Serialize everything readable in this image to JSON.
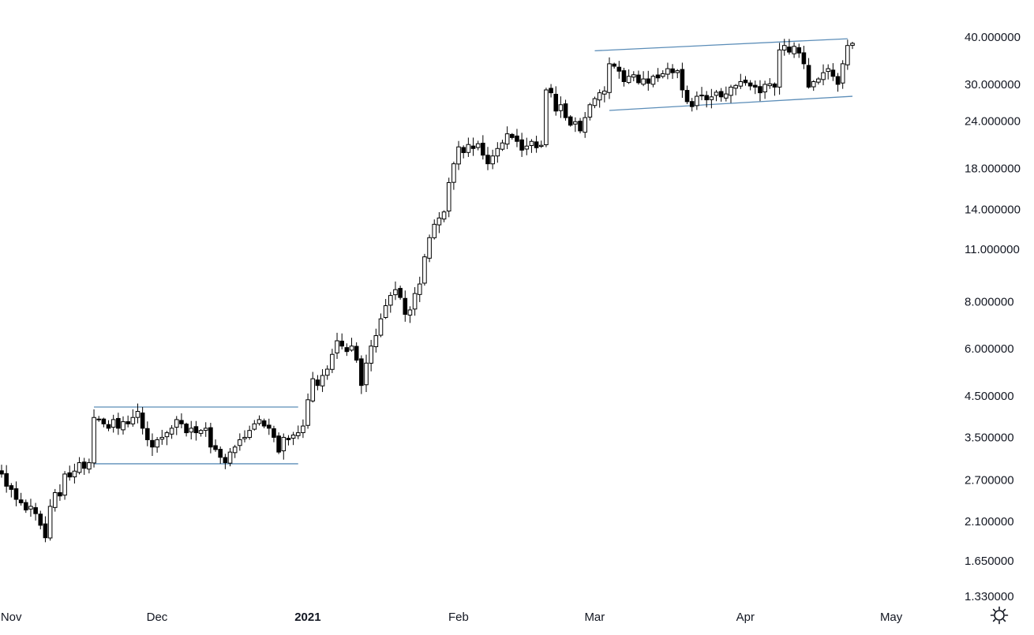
{
  "chart_data": {
    "type": "candlestick",
    "scale": "log",
    "ylim": [
      1.33,
      40.0
    ],
    "y_ticks": [
      {
        "value": 40.0,
        "label": "40.000000"
      },
      {
        "value": 30.0,
        "label": "30.000000"
      },
      {
        "value": 24.0,
        "label": "24.000000"
      },
      {
        "value": 18.0,
        "label": "18.000000"
      },
      {
        "value": 14.0,
        "label": "14.000000"
      },
      {
        "value": 11.0,
        "label": "11.000000"
      },
      {
        "value": 8.0,
        "label": "8.000000"
      },
      {
        "value": 6.0,
        "label": "6.000000"
      },
      {
        "value": 4.5,
        "label": "4.500000"
      },
      {
        "value": 3.5,
        "label": "3.500000"
      },
      {
        "value": 2.7,
        "label": "2.700000"
      },
      {
        "value": 2.1,
        "label": "2.100000"
      },
      {
        "value": 1.65,
        "label": "1.650000"
      },
      {
        "value": 1.33,
        "label": "1.330000"
      }
    ],
    "x_ticks": [
      {
        "date": "2020-11-01",
        "label": "Nov",
        "bold": false
      },
      {
        "date": "2020-12-01",
        "label": "Dec",
        "bold": false
      },
      {
        "date": "2021-01-01",
        "label": "2021",
        "bold": true
      },
      {
        "date": "2021-02-01",
        "label": "Feb",
        "bold": false
      },
      {
        "date": "2021-03-01",
        "label": "Mar",
        "bold": false
      },
      {
        "date": "2021-04-01",
        "label": "Apr",
        "bold": false
      },
      {
        "date": "2021-05-01",
        "label": "May",
        "bold": false
      }
    ],
    "first_date": "2020-10-31",
    "closes": [
      2.8,
      2.6,
      2.55,
      2.4,
      2.35,
      2.25,
      2.3,
      2.2,
      2.05,
      1.9,
      2.3,
      2.5,
      2.45,
      2.8,
      2.75,
      2.85,
      3.0,
      2.9,
      3.0,
      3.95,
      3.9,
      3.8,
      3.7,
      3.9,
      3.7,
      3.85,
      3.8,
      3.95,
      4.1,
      3.7,
      3.45,
      3.3,
      3.45,
      3.5,
      3.6,
      3.7,
      3.9,
      3.8,
      3.6,
      3.7,
      3.6,
      3.65,
      3.7,
      3.3,
      3.25,
      3.1,
      3.0,
      3.2,
      3.3,
      3.45,
      3.5,
      3.65,
      3.8,
      3.9,
      3.75,
      3.7,
      3.5,
      3.2,
      3.5,
      3.45,
      3.55,
      3.6,
      3.75,
      4.4,
      5.0,
      4.8,
      5.1,
      5.3,
      5.8,
      6.3,
      6.1,
      5.9,
      6.1,
      5.6,
      4.8,
      5.5,
      6.1,
      6.5,
      7.2,
      7.8,
      8.3,
      8.6,
      8.2,
      7.4,
      7.6,
      8.4,
      8.9,
      10.5,
      11.8,
      12.8,
      13.3,
      13.8,
      16.5,
      18.5,
      20.5,
      19.8,
      20.8,
      20.3,
      20.9,
      19.5,
      18.5,
      19.4,
      20.3,
      21.0,
      22.2,
      21.7,
      21.2,
      20.1,
      20.6,
      21.2,
      20.4,
      20.7,
      29.0,
      28.5,
      25.5,
      26.5,
      24.5,
      23.4,
      23.9,
      22.6,
      24.5,
      26.5,
      27.5,
      28.5,
      28.8,
      34.0,
      33.5,
      32.5,
      30.5,
      31.5,
      31.8,
      30.3,
      31.0,
      30.2,
      31.5,
      31.2,
      32.0,
      33.0,
      32.2,
      32.6,
      29.0,
      27.0,
      26.2,
      27.9,
      28.1,
      27.3,
      27.8,
      28.6,
      27.8,
      28.3,
      29.5,
      29.8,
      30.5,
      30.3,
      29.7,
      29.5,
      28.5,
      30.0,
      30.1,
      29.5,
      37.0,
      38.0,
      36.5,
      37.8,
      36.3,
      34.0,
      29.5,
      30.5,
      31.0,
      32.2,
      33.0,
      31.5,
      30.0,
      34.0,
      38.0,
      38.5
    ],
    "channels": [
      {
        "name": "dec-range-top",
        "start": {
          "date": "2020-11-19",
          "value": 4.21
        },
        "end": {
          "date": "2020-12-31",
          "value": 4.21
        }
      },
      {
        "name": "dec-range-bottom",
        "start": {
          "date": "2020-11-19",
          "value": 2.98
        },
        "end": {
          "date": "2020-12-31",
          "value": 2.98
        }
      },
      {
        "name": "spring-channel-top",
        "start": {
          "date": "2021-03-02",
          "value": 36.8
        },
        "end": {
          "date": "2021-04-23",
          "value": 39.6
        }
      },
      {
        "name": "spring-channel-bottom",
        "start": {
          "date": "2021-03-05",
          "value": 25.6
        },
        "end": {
          "date": "2021-04-24",
          "value": 27.9
        }
      }
    ]
  },
  "colors": {
    "up_body": "#ffffff",
    "down_body": "#000000",
    "wick": "#000000",
    "trendline": "#5b8db8",
    "axis_text": "#131722"
  },
  "settings_icon": "gear-icon"
}
